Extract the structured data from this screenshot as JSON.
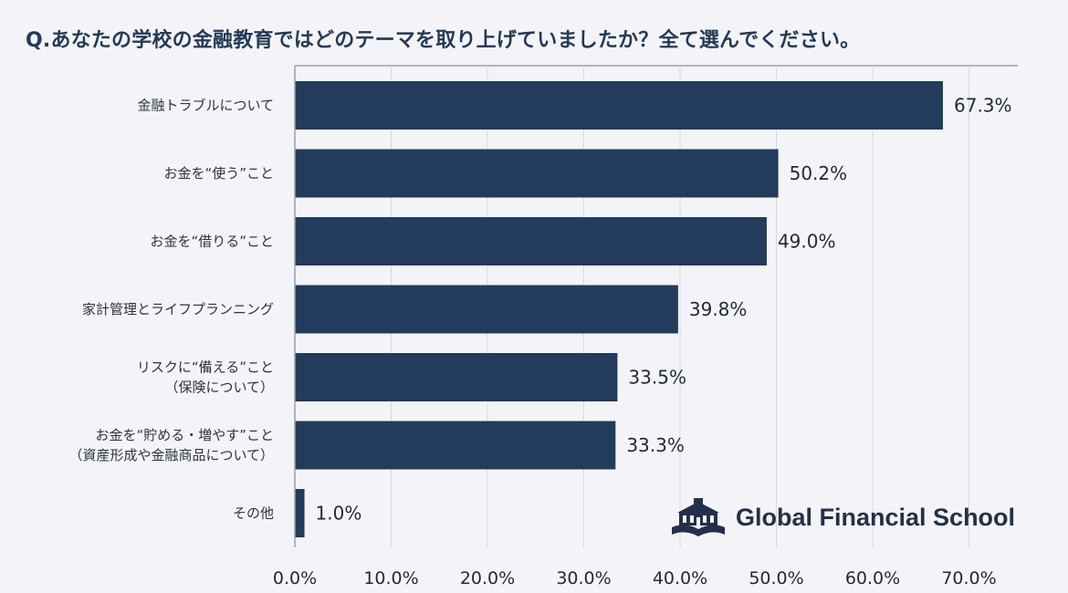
{
  "title": "Q.あなたの学校の金融教育ではどのテーマを取り上げていましたか？全て選んでください。",
  "logo": {
    "text": "Global Financial School",
    "icon": "school-building-icon"
  },
  "colors": {
    "bar": "#233c5c",
    "grid": "#d8d8e0",
    "axis": "#9aa0ab",
    "background": "#f4f4f8"
  },
  "chart_data": {
    "type": "bar",
    "orientation": "horizontal",
    "title": "Q.あなたの学校の金融教育ではどのテーマを取り上げていましたか？全て選んでください。",
    "categories": [
      [
        "金融トラブルについて"
      ],
      [
        "お金を“使う”こと"
      ],
      [
        "お金を“借りる”こと"
      ],
      [
        "家計管理とライフプランニング"
      ],
      [
        "リスクに“備える”こと",
        "（保険について）"
      ],
      [
        "お金を“貯める・増やす”こと",
        "（資産形成や金融商品について）"
      ],
      [
        "その他"
      ]
    ],
    "values": [
      67.3,
      50.2,
      49.0,
      39.8,
      33.5,
      33.3,
      1.0
    ],
    "value_labels": [
      "67.3%",
      "50.2%",
      "49.0%",
      "39.8%",
      "33.5%",
      "33.3%",
      "1.0%"
    ],
    "xlim": [
      0,
      70
    ],
    "xticks": [
      0,
      10,
      20,
      30,
      40,
      50,
      60,
      70
    ],
    "xtick_labels": [
      "0.0%",
      "10.0%",
      "20.0%",
      "30.0%",
      "40.0%",
      "50.0%",
      "60.0%",
      "70.0%"
    ],
    "grid": true,
    "legend": "none"
  }
}
